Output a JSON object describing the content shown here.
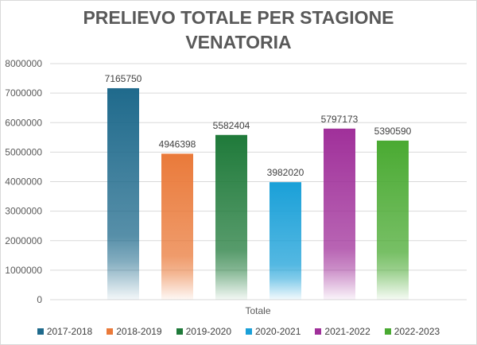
{
  "chart_data": {
    "type": "bar",
    "title_lines": [
      "PRELIEVO TOTALE PER STAGIONE",
      "VENATORIA"
    ],
    "categories": [
      "Totale"
    ],
    "xlabel": "",
    "ylabel": "",
    "ylim": [
      0,
      8000000
    ],
    "yticks": [
      0,
      1000000,
      2000000,
      3000000,
      4000000,
      5000000,
      6000000,
      7000000,
      8000000
    ],
    "ytick_labels": [
      "0",
      "1000000",
      "2000000",
      "3000000",
      "4000000",
      "5000000",
      "6000000",
      "7000000",
      "8000000"
    ],
    "grid": true,
    "legend_position": "bottom",
    "series": [
      {
        "name": "2017-2018",
        "values": [
          7165750
        ],
        "label": "7165750",
        "color": "#1f6a8c"
      },
      {
        "name": "2018-2019",
        "values": [
          4946398
        ],
        "label": "4946398",
        "color": "#ea7a3a"
      },
      {
        "name": "2019-2020",
        "values": [
          5582404
        ],
        "label": "5582404",
        "color": "#1f7a3a"
      },
      {
        "name": "2020-2021",
        "values": [
          3982020
        ],
        "label": "3982020",
        "color": "#1aa0d8"
      },
      {
        "name": "2021-2022",
        "values": [
          5797173
        ],
        "label": "5797173",
        "color": "#a0309a"
      },
      {
        "name": "2022-2023",
        "values": [
          5390590
        ],
        "label": "5390590",
        "color": "#4aaa32"
      }
    ]
  }
}
